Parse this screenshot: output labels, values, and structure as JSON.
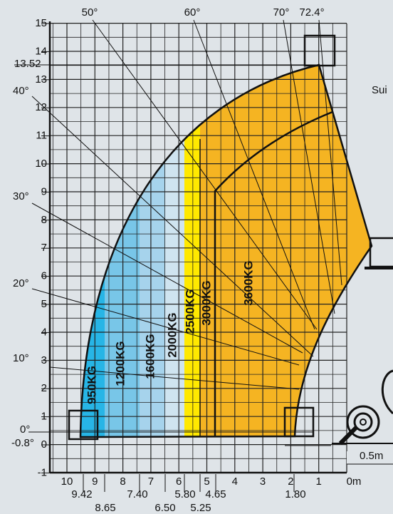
{
  "y_axis": {
    "ticks": [
      15,
      14,
      13,
      12,
      11,
      10,
      9,
      8,
      7,
      6,
      5,
      4,
      3,
      2,
      1,
      0,
      -1
    ],
    "extra": "13.52"
  },
  "x_axis": {
    "ticks": [
      "10",
      "9",
      "8",
      "7",
      "6",
      "5",
      "4",
      "3",
      "2",
      "1",
      "0m"
    ],
    "row1": [
      "9.42",
      "7.40",
      "5.80",
      "4.65",
      "1.80"
    ],
    "row2": [
      "8.65",
      "6.50",
      "5.25"
    ]
  },
  "angles_top": [
    "50°",
    "60°",
    "70°",
    "72.4°"
  ],
  "angles_left": [
    "40°",
    "30°",
    "20°",
    "10°",
    "0°",
    "-0.8°"
  ],
  "zones": [
    "950KG",
    "1200KG",
    "1600KG",
    "2000KG",
    "2500KG",
    "3000KG",
    "3600KG"
  ],
  "scale_note": "0.5m",
  "side_text": "Sui"
}
